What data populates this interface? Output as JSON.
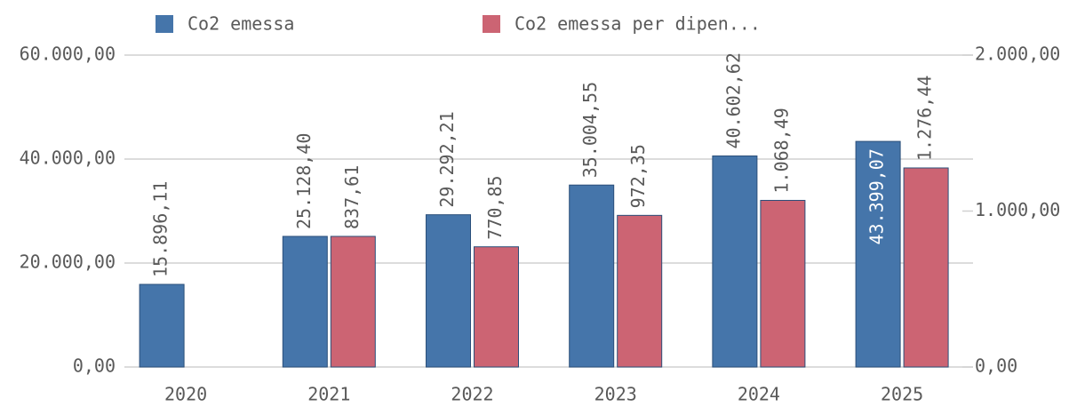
{
  "chart_data": {
    "type": "bar",
    "categories": [
      "2020",
      "2021",
      "2022",
      "2023",
      "2024",
      "2025"
    ],
    "series": [
      {
        "name": "Co2 emessa",
        "color": "#4575aa",
        "axis": "y",
        "values": [
          15896.11,
          25128.4,
          29292.21,
          35004.55,
          40602.62,
          43399.07
        ],
        "value_labels": [
          "15.896,11",
          "25.128,40",
          "29.292,21",
          "35.004,55",
          "40.602,62",
          "43.399,07"
        ]
      },
      {
        "name": "Co2 emessa per dipen...",
        "color": "#cc6473",
        "axis": "y2",
        "values": [
          null,
          837.61,
          770.85,
          972.35,
          1068.49,
          1276.44
        ],
        "value_labels": [
          null,
          "837,61",
          "770,85",
          "972,35",
          "1.068,49",
          "1.276,44"
        ]
      }
    ],
    "ylim": [
      0,
      60000
    ],
    "yticks": [
      {
        "value": 0,
        "label": "0,00"
      },
      {
        "value": 20000,
        "label": "20.000,00"
      },
      {
        "value": 40000,
        "label": "40.000,00"
      },
      {
        "value": 60000,
        "label": "60.000,00"
      }
    ],
    "y2lim": [
      0,
      2000
    ],
    "y2ticks": [
      {
        "value": 0,
        "label": "0,00"
      },
      {
        "value": 1000,
        "label": "1.000,00"
      },
      {
        "value": 2000,
        "label": "2.000,00"
      }
    ],
    "grid": true,
    "legend": "top"
  }
}
